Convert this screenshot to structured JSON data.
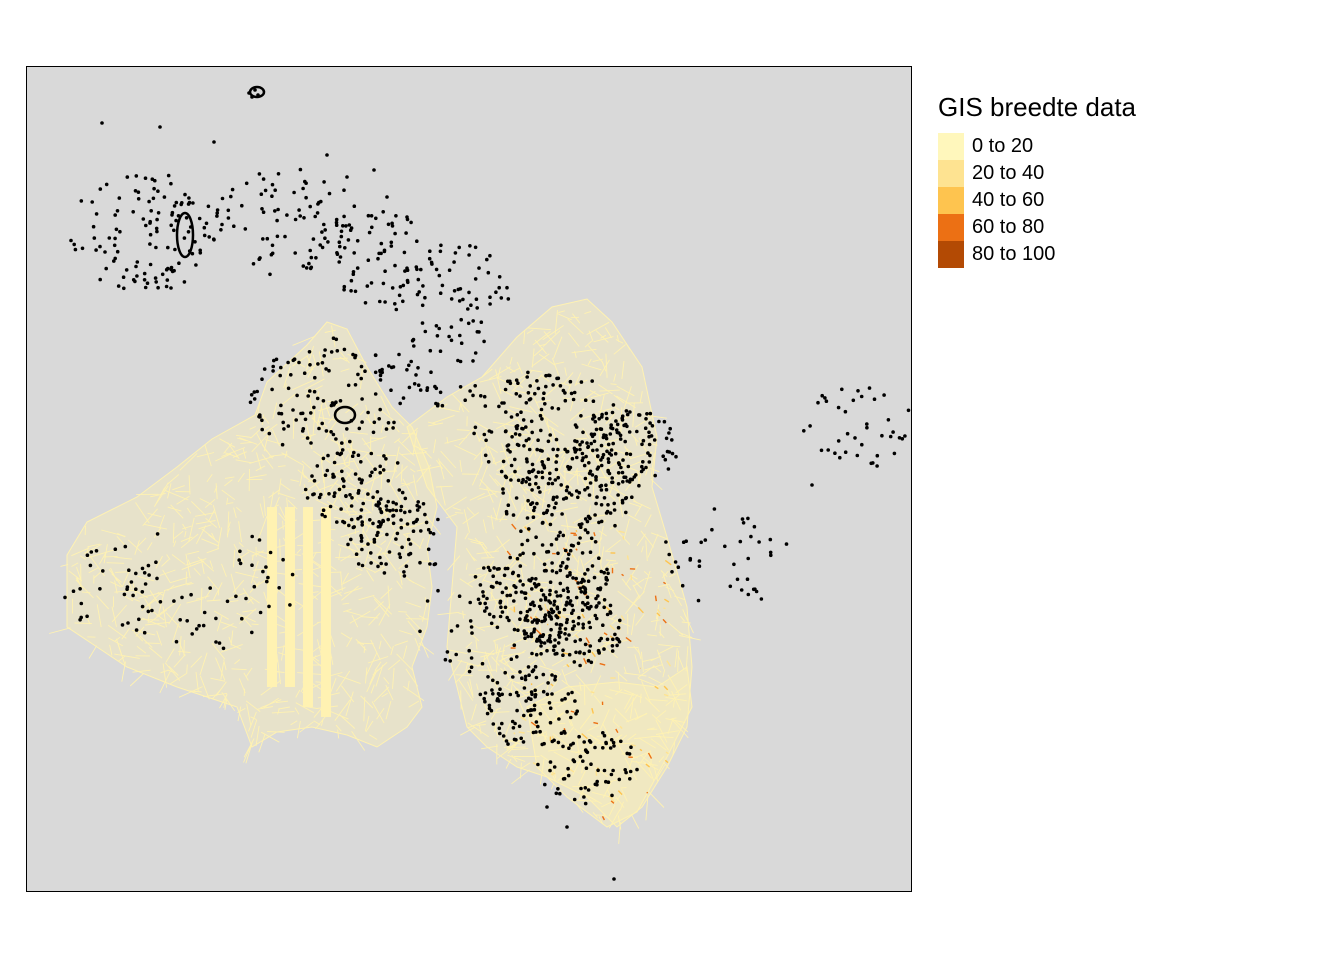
{
  "legend": {
    "title": "GIS breedte data",
    "items": [
      {
        "label": "0 to 20",
        "color": "#FFF7BC"
      },
      {
        "label": "20 to 40",
        "color": "#FEE391"
      },
      {
        "label": "40 to 60",
        "color": "#FEC44F"
      },
      {
        "label": "60 to 80",
        "color": "#EC7014"
      },
      {
        "label": "80 to 100",
        "color": "#B34A04"
      }
    ]
  },
  "map": {
    "background_color": "#D9D9D9",
    "frame_color": "#000000",
    "line_color": "#FFF2B2",
    "point_color": "#000000"
  }
}
